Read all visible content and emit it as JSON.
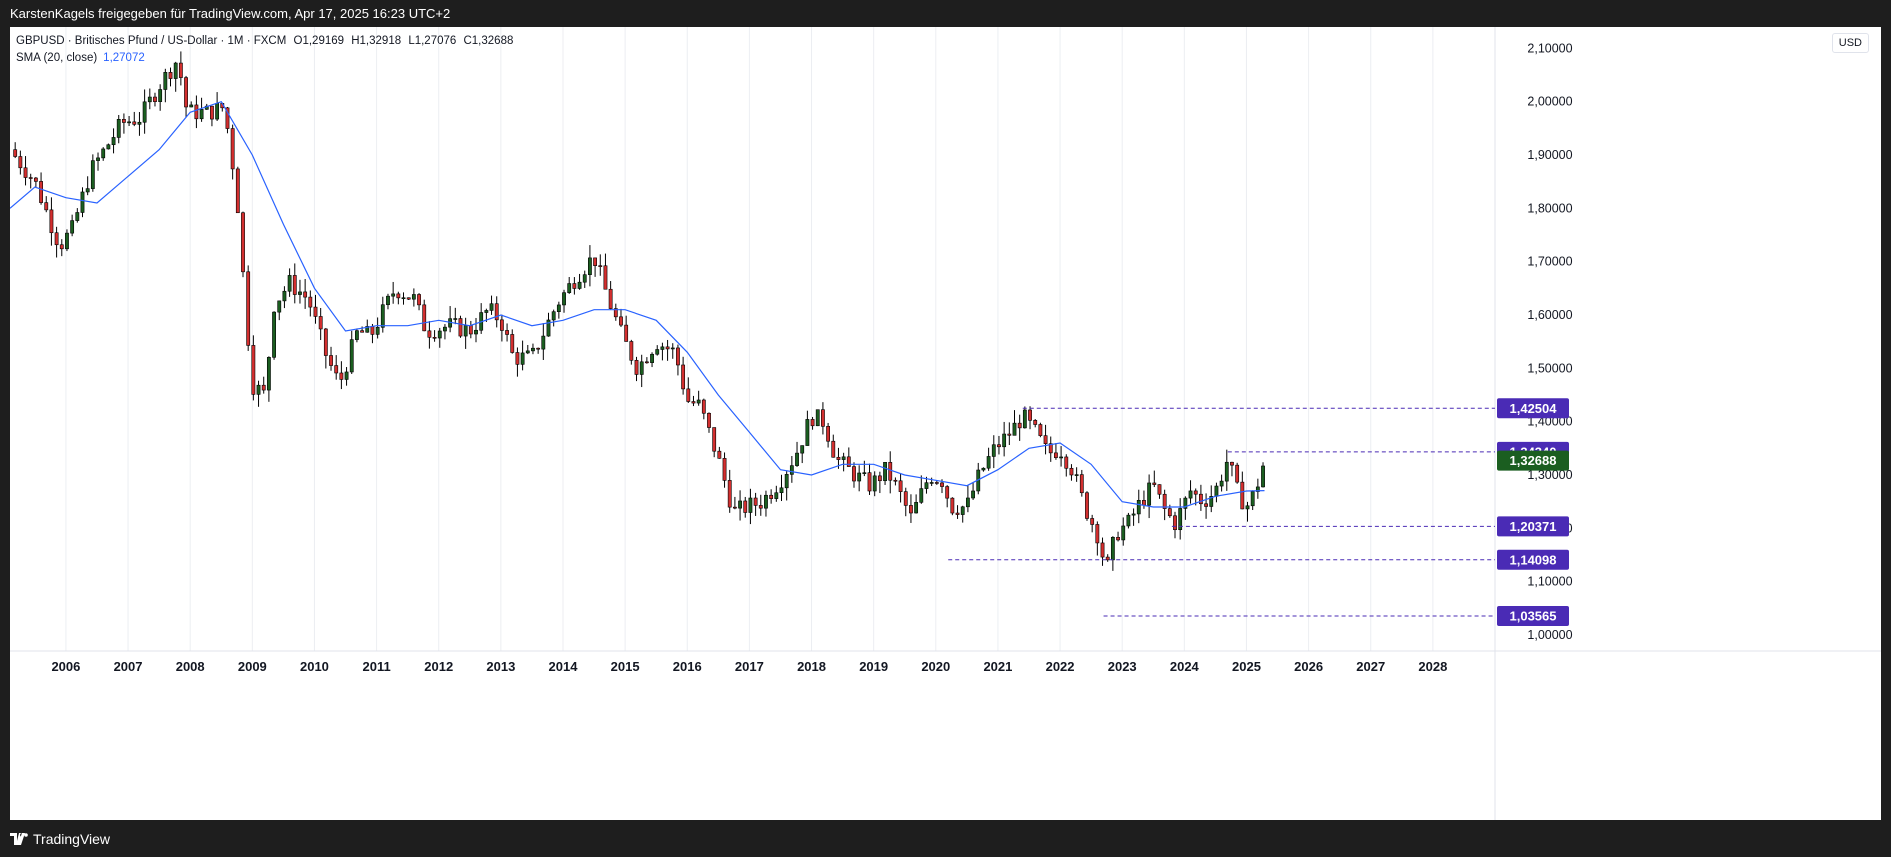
{
  "topbar": {
    "text": "KarstenKagels freigegeben für TradingView.com, Apr 17, 2025 16:23 UTC+2"
  },
  "legend": {
    "line1": "GBPUSD · Britisches Pfund / US-Dollar · 1M · FXCM",
    "open": "O1,29169",
    "high": "H1,32918",
    "low": "L1,27076",
    "close": "C1,32688",
    "sma_label": "SMA (20, close)",
    "sma_value": "1,27072"
  },
  "currency": "USD",
  "footer": {
    "brand": "TradingView"
  },
  "colors": {
    "up": "#26a69a",
    "up_body": "#1b5e20",
    "down": "#d32f2f",
    "sma": "#2962ff",
    "line_label": "#4a2bb5",
    "last_label": "#1b5e20"
  },
  "chart_data": {
    "type": "candlestick",
    "symbol": "GBPUSD",
    "interval": "1M",
    "y_axis": {
      "min": 0.97,
      "max": 2.14,
      "ticks": [
        "2,10000",
        "2,00000",
        "1,90000",
        "1,80000",
        "1,70000",
        "1,60000",
        "1,50000",
        "1,40000",
        "1,30000",
        "1,20000",
        "1,10000",
        "1,00000"
      ],
      "tick_values": [
        2.1,
        2.0,
        1.9,
        1.8,
        1.7,
        1.6,
        1.5,
        1.4,
        1.3,
        1.2,
        1.1,
        1.0
      ]
    },
    "x_axis": {
      "start": 2005.1,
      "end": 2029.0,
      "labels": [
        "2006",
        "2007",
        "2008",
        "2009",
        "2010",
        "2011",
        "2012",
        "2013",
        "2014",
        "2015",
        "2016",
        "2017",
        "2018",
        "2019",
        "2020",
        "2021",
        "2022",
        "2023",
        "2024",
        "2025",
        "2026",
        "2027",
        "2028"
      ],
      "label_years": [
        2006,
        2007,
        2008,
        2009,
        2010,
        2011,
        2012,
        2013,
        2014,
        2015,
        2016,
        2017,
        2018,
        2019,
        2020,
        2021,
        2022,
        2023,
        2024,
        2025,
        2026,
        2027,
        2028
      ]
    },
    "price_anchors": [
      [
        2005.1,
        1.91
      ],
      [
        2005.5,
        1.85
      ],
      [
        2005.9,
        1.73
      ],
      [
        2006.1,
        1.76
      ],
      [
        2006.4,
        1.87
      ],
      [
        2006.9,
        1.96
      ],
      [
        2007.2,
        1.97
      ],
      [
        2007.5,
        2.03
      ],
      [
        2007.8,
        2.08
      ],
      [
        2007.95,
        1.98
      ],
      [
        2008.3,
        1.98
      ],
      [
        2008.55,
        1.99
      ],
      [
        2008.75,
        1.83
      ],
      [
        2008.9,
        1.6
      ],
      [
        2009.0,
        1.47
      ],
      [
        2009.2,
        1.45
      ],
      [
        2009.35,
        1.62
      ],
      [
        2009.6,
        1.66
      ],
      [
        2009.9,
        1.63
      ],
      [
        2010.2,
        1.52
      ],
      [
        2010.4,
        1.47
      ],
      [
        2010.7,
        1.57
      ],
      [
        2010.9,
        1.56
      ],
      [
        2011.3,
        1.65
      ],
      [
        2011.6,
        1.63
      ],
      [
        2011.8,
        1.57
      ],
      [
        2012.2,
        1.58
      ],
      [
        2012.5,
        1.57
      ],
      [
        2012.8,
        1.61
      ],
      [
        2013.0,
        1.59
      ],
      [
        2013.2,
        1.52
      ],
      [
        2013.5,
        1.52
      ],
      [
        2013.9,
        1.62
      ],
      [
        2014.2,
        1.67
      ],
      [
        2014.5,
        1.71
      ],
      [
        2014.7,
        1.64
      ],
      [
        2014.95,
        1.56
      ],
      [
        2015.2,
        1.5
      ],
      [
        2015.5,
        1.55
      ],
      [
        2015.8,
        1.53
      ],
      [
        2016.0,
        1.44
      ],
      [
        2016.2,
        1.43
      ],
      [
        2016.5,
        1.33
      ],
      [
        2016.75,
        1.23
      ],
      [
        2016.95,
        1.24
      ],
      [
        2017.2,
        1.25
      ],
      [
        2017.5,
        1.29
      ],
      [
        2017.75,
        1.34
      ],
      [
        2018.0,
        1.41
      ],
      [
        2018.2,
        1.4
      ],
      [
        2018.4,
        1.33
      ],
      [
        2018.7,
        1.3
      ],
      [
        2018.95,
        1.28
      ],
      [
        2019.2,
        1.31
      ],
      [
        2019.4,
        1.27
      ],
      [
        2019.6,
        1.22
      ],
      [
        2019.9,
        1.3
      ],
      [
        2020.1,
        1.29
      ],
      [
        2020.25,
        1.24
      ],
      [
        2020.5,
        1.24
      ],
      [
        2020.7,
        1.3
      ],
      [
        2020.95,
        1.35
      ],
      [
        2021.2,
        1.38
      ],
      [
        2021.4,
        1.41
      ],
      [
        2021.6,
        1.38
      ],
      [
        2021.8,
        1.34
      ],
      [
        2022.0,
        1.35
      ],
      [
        2022.2,
        1.31
      ],
      [
        2022.4,
        1.24
      ],
      [
        2022.6,
        1.19
      ],
      [
        2022.75,
        1.12
      ],
      [
        2022.9,
        1.19
      ],
      [
        2023.1,
        1.21
      ],
      [
        2023.3,
        1.25
      ],
      [
        2023.5,
        1.28
      ],
      [
        2023.7,
        1.23
      ],
      [
        2023.85,
        1.21
      ],
      [
        2024.1,
        1.27
      ],
      [
        2024.3,
        1.25
      ],
      [
        2024.5,
        1.27
      ],
      [
        2024.7,
        1.33
      ],
      [
        2024.85,
        1.27
      ],
      [
        2025.0,
        1.24
      ],
      [
        2025.1,
        1.26
      ],
      [
        2025.2,
        1.29
      ],
      [
        2025.29,
        1.3269
      ]
    ],
    "sma": {
      "name": "SMA (20, close)",
      "points": [
        [
          2005.1,
          1.8
        ],
        [
          2005.5,
          1.84
        ],
        [
          2006.0,
          1.82
        ],
        [
          2006.5,
          1.81
        ],
        [
          2007.0,
          1.86
        ],
        [
          2007.5,
          1.91
        ],
        [
          2008.0,
          1.98
        ],
        [
          2008.5,
          2.0
        ],
        [
          2009.0,
          1.9
        ],
        [
          2009.5,
          1.77
        ],
        [
          2010.0,
          1.65
        ],
        [
          2010.5,
          1.57
        ],
        [
          2011.0,
          1.58
        ],
        [
          2011.5,
          1.58
        ],
        [
          2012.0,
          1.59
        ],
        [
          2012.5,
          1.58
        ],
        [
          2013.0,
          1.6
        ],
        [
          2013.5,
          1.58
        ],
        [
          2014.0,
          1.59
        ],
        [
          2014.5,
          1.61
        ],
        [
          2015.0,
          1.61
        ],
        [
          2015.5,
          1.59
        ],
        [
          2016.0,
          1.53
        ],
        [
          2016.5,
          1.45
        ],
        [
          2017.0,
          1.38
        ],
        [
          2017.5,
          1.31
        ],
        [
          2018.0,
          1.3
        ],
        [
          2018.5,
          1.32
        ],
        [
          2019.0,
          1.32
        ],
        [
          2019.5,
          1.3
        ],
        [
          2020.0,
          1.29
        ],
        [
          2020.5,
          1.28
        ],
        [
          2021.0,
          1.31
        ],
        [
          2021.5,
          1.35
        ],
        [
          2022.0,
          1.36
        ],
        [
          2022.5,
          1.32
        ],
        [
          2023.0,
          1.25
        ],
        [
          2023.5,
          1.24
        ],
        [
          2024.0,
          1.24
        ],
        [
          2024.5,
          1.26
        ],
        [
          2025.0,
          1.27
        ],
        [
          2025.29,
          1.27072
        ]
      ]
    },
    "horizontal_lines": [
      {
        "value": 1.42504,
        "label": "1,42504",
        "from": 2021.4
      },
      {
        "value": 1.3434,
        "label": "1,34340",
        "from": 2024.7
      },
      {
        "value": 1.20371,
        "label": "1,20371",
        "from": 2023.8
      },
      {
        "value": 1.14098,
        "label": "1,14098",
        "from": 2020.2
      },
      {
        "value": 1.03565,
        "label": "1,03565",
        "from": 2022.7
      }
    ],
    "last_price": {
      "value": 1.32688,
      "label": "1,32688"
    }
  }
}
